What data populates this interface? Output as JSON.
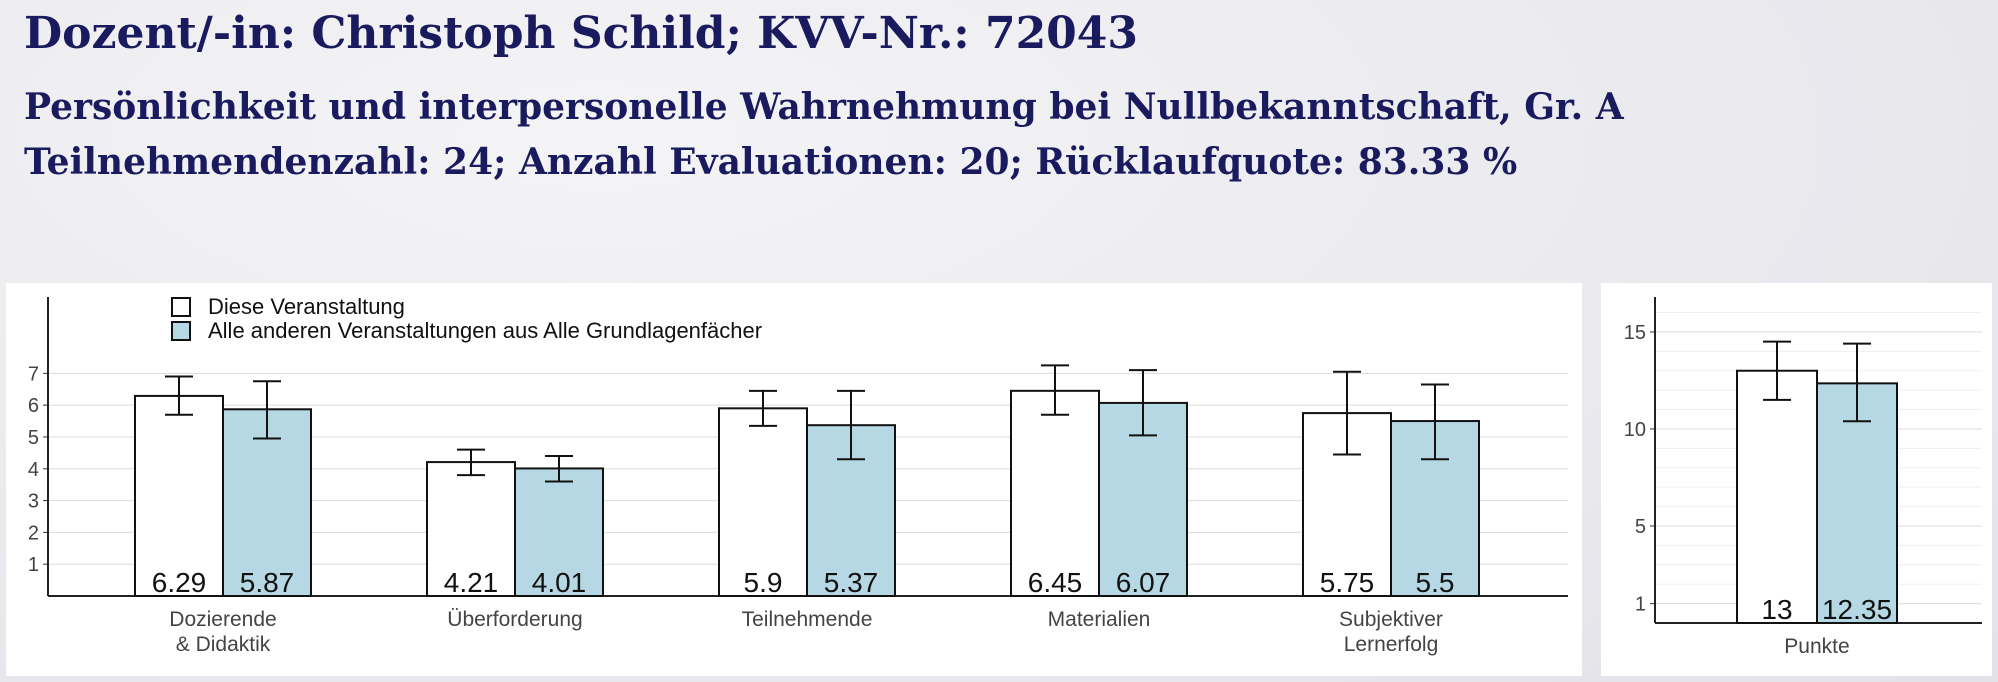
{
  "header": {
    "title": "Dozent/-in: Christoph Schild; KVV-Nr.: 72043",
    "course": "Persönlichkeit und interpersonelle Wahrnehmung bei Nullbekanntschaft, Gr. A",
    "stats": "Teilnehmendenzahl: 24; Anzahl Evaluationen: 20; Rücklaufquote: 83.33 %"
  },
  "colors": {
    "this_course": "#ffffff",
    "others": "#b5d8e4",
    "title": "#1a1a5e",
    "grid": "#dcdcdc"
  },
  "chart_data": [
    {
      "type": "bar",
      "legend": {
        "placement": "top-left"
      },
      "categories": [
        "Dozierende\n& Didaktik",
        "Überforderung",
        "Teilnehmende",
        "Materialien",
        "Subjektiver\nLernerfolg"
      ],
      "series": [
        {
          "name": "Diese Veranstaltung",
          "values": [
            6.29,
            4.21,
            5.9,
            6.45,
            5.75
          ],
          "err_low": [
            5.7,
            3.8,
            5.35,
            5.7,
            4.45
          ],
          "err_high": [
            6.9,
            4.6,
            6.45,
            7.25,
            7.05
          ]
        },
        {
          "name": "Alle anderen Veranstaltungen aus Alle Grundlagenfächer",
          "values": [
            5.87,
            4.01,
            5.37,
            6.07,
            5.5
          ],
          "err_low": [
            4.95,
            3.6,
            4.3,
            5.05,
            4.3
          ],
          "err_high": [
            6.75,
            4.4,
            6.45,
            7.1,
            6.65
          ]
        }
      ],
      "ylim": [
        0,
        9.4
      ],
      "yticks": [
        1,
        2,
        3,
        4,
        5,
        6,
        7
      ],
      "grid": true
    },
    {
      "type": "bar",
      "categories": [
        "Punkte"
      ],
      "series": [
        {
          "values": [
            13
          ],
          "err_low": [
            11.5
          ],
          "err_high": [
            14.5
          ]
        },
        {
          "values": [
            12.35
          ],
          "err_low": [
            10.4
          ],
          "err_high": [
            14.4
          ]
        }
      ],
      "ylim": [
        0,
        16.8
      ],
      "yticks": [
        1,
        5,
        10,
        15
      ],
      "grid": true
    }
  ]
}
